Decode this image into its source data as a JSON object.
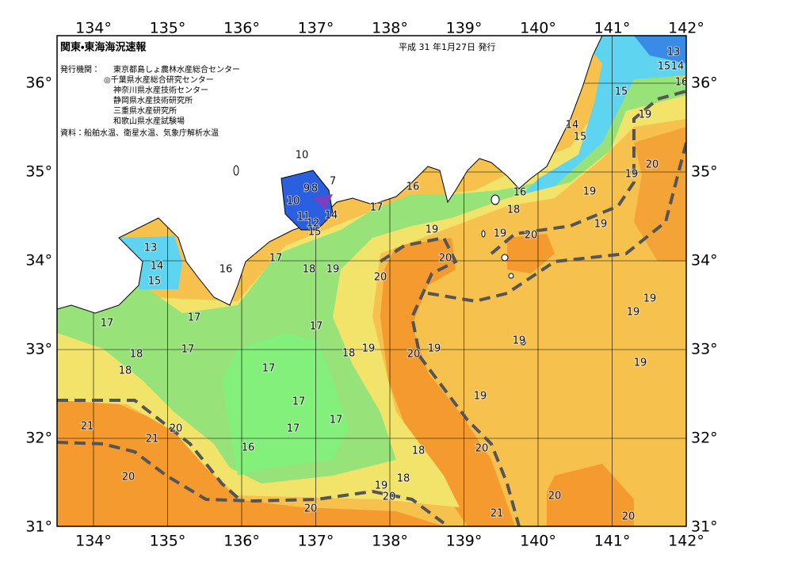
{
  "header": {
    "title": "関東・東海海況速報",
    "issue_date": "平成 31 年1月27日 発行",
    "publishers_label": "発行機関：",
    "publishers": [
      "東京都島しょ農林水産総合センター",
      "◎千葉県水産総合研究センター",
      "神奈川県水産技術センター",
      "静岡県水産技術研究所",
      "三重県水産研究所",
      "和歌山県水産試験場"
    ],
    "source": "資料：船舶水温、衛星水温、気象庁解析水温"
  },
  "map": {
    "lon_ticks": [
      {
        "value": 134,
        "label": "134°"
      },
      {
        "value": 135,
        "label": "135°"
      },
      {
        "value": 136,
        "label": "136°"
      },
      {
        "value": 137,
        "label": "137°"
      },
      {
        "value": 138,
        "label": "138°"
      },
      {
        "value": 139,
        "label": "139°"
      },
      {
        "value": 140,
        "label": "140°"
      },
      {
        "value": 141,
        "label": "141°"
      },
      {
        "value": 142,
        "label": "142°"
      }
    ],
    "lat_ticks": [
      {
        "value": 31,
        "label": "31°"
      },
      {
        "value": 32,
        "label": "32°"
      },
      {
        "value": 33,
        "label": "33°"
      },
      {
        "value": 34,
        "label": "34°"
      },
      {
        "value": 35,
        "label": "35°"
      },
      {
        "value": 36,
        "label": "36°"
      }
    ],
    "contour_labels": [
      13,
      15,
      14,
      16,
      15,
      14,
      15,
      19,
      20,
      19,
      19,
      16,
      18,
      20,
      19,
      19,
      16,
      17,
      19,
      20,
      20,
      18,
      19,
      17,
      10,
      9,
      8,
      7,
      10,
      14,
      11,
      12,
      15,
      13,
      14,
      15,
      16,
      17,
      17,
      17,
      18,
      18,
      17,
      18,
      19,
      20,
      19,
      19,
      19,
      19,
      19,
      17,
      17,
      17,
      17,
      19,
      21,
      21,
      20,
      16,
      18,
      20,
      18,
      19,
      20,
      20,
      20,
      21,
      20,
      20
    ]
  }
}
